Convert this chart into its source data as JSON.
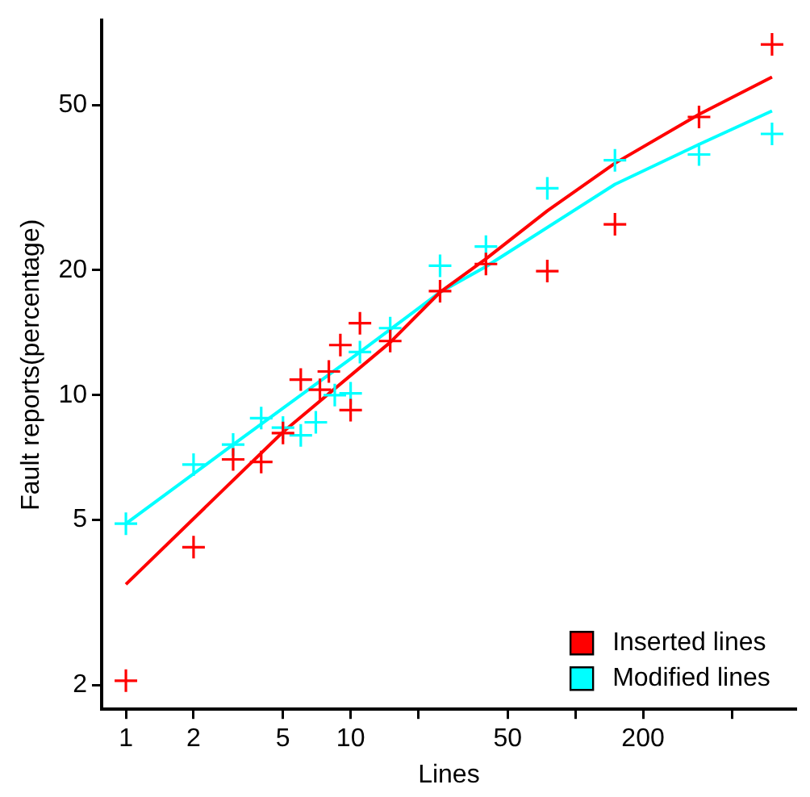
{
  "chart_data": {
    "type": "scatter",
    "xlabel": "Lines",
    "ylabel": "Fault reports(percentage)",
    "log": "xy",
    "marker": "cross",
    "legend": "bottom right",
    "grid": false,
    "xlim": [
      0.78,
      960
    ],
    "ylim": [
      1.75,
      80
    ],
    "xticks": [
      1,
      2,
      5,
      10,
      {
        "value": 20,
        "label": null
      },
      50,
      {
        "value": 100,
        "label": null
      },
      200,
      {
        "value": 500,
        "label": null
      }
    ],
    "yticks": [
      2,
      5,
      10,
      20,
      50
    ],
    "series": [
      {
        "name": "Inserted lines",
        "color": "#ff0000",
        "x": [
          1,
          2,
          3,
          4,
          5,
          6,
          7.3,
          8,
          9,
          10,
          11,
          15,
          25,
          40,
          75,
          150,
          355,
          750
        ],
        "values": [
          2.05,
          4.3,
          7.0,
          6.9,
          8.1,
          10.9,
          10.3,
          11.4,
          13.2,
          9.2,
          14.9,
          13.5,
          17.8,
          20.7,
          19.9,
          25.8,
          46.8,
          70
        ]
      },
      {
        "name": "Modified lines",
        "color": "#00ffff",
        "x": [
          1,
          2,
          3,
          4,
          5,
          6,
          7,
          8.5,
          10,
          11,
          15,
          25,
          40,
          75,
          150,
          355,
          750
        ],
        "values": [
          4.9,
          6.8,
          7.6,
          8.8,
          8.35,
          8.0,
          8.6,
          10,
          10.1,
          12.7,
          14.5,
          20.5,
          22.8,
          31.5,
          36.8,
          38,
          42.6
        ]
      },
      {
        "type": "line",
        "marker": "none",
        "color": "#ff0000",
        "x": [
          1,
          5,
          15,
          25,
          40,
          75,
          150,
          355,
          750
        ],
        "values": [
          3.5,
          8.15,
          13.4,
          17.7,
          21.3,
          27.8,
          36.2,
          47.5,
          58.4
        ]
      },
      {
        "type": "line",
        "marker": "none",
        "color": "#00ffff",
        "x": [
          1,
          3,
          11,
          25,
          40,
          150,
          355,
          750
        ],
        "values": [
          4.9,
          7.6,
          12.7,
          17.7,
          20.4,
          32.2,
          40.2,
          48.4
        ]
      }
    ]
  }
}
